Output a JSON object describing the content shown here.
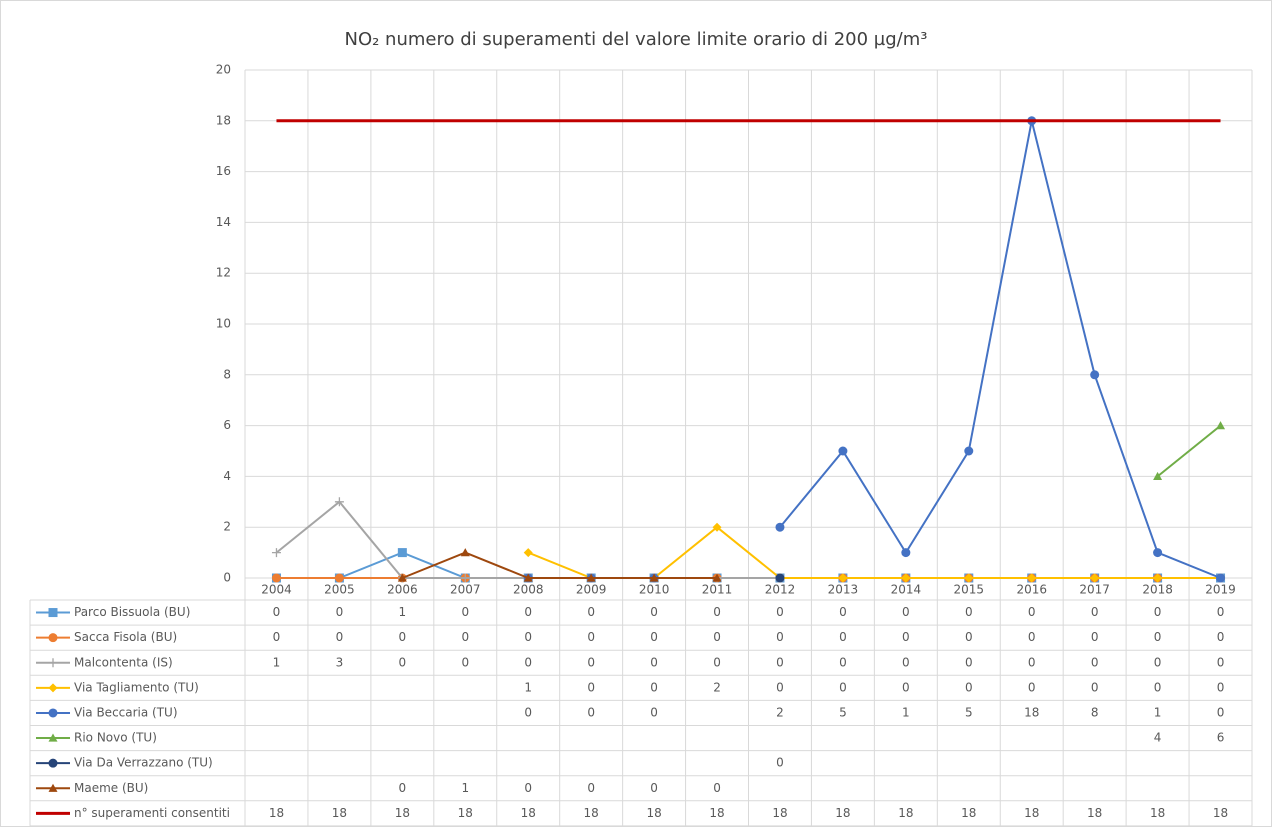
{
  "chart_data": {
    "type": "line",
    "title": "NO₂ numero di superamenti del valore limite orario di 200 µg/m³",
    "categories": [
      "2004",
      "2005",
      "2006",
      "2007",
      "2008",
      "2009",
      "2010",
      "2011",
      "2012",
      "2013",
      "2014",
      "2015",
      "2016",
      "2017",
      "2018",
      "2019"
    ],
    "ylim": [
      0,
      20
    ],
    "yticks": [
      0,
      2,
      4,
      6,
      8,
      10,
      12,
      14,
      16,
      18,
      20
    ],
    "grid": true,
    "series": [
      {
        "name": "Parco Bissuola (BU)",
        "color": "#5b9bd5",
        "marker": "square",
        "values": [
          0,
          0,
          1,
          0,
          0,
          0,
          0,
          0,
          0,
          0,
          0,
          0,
          0,
          0,
          0,
          0
        ]
      },
      {
        "name": "Sacca Fisola (BU)",
        "color": "#ed7d31",
        "marker": "circle",
        "values": [
          0,
          0,
          0,
          0,
          0,
          0,
          0,
          0,
          0,
          0,
          0,
          0,
          0,
          0,
          0,
          0
        ]
      },
      {
        "name": "Malcontenta (IS)",
        "color": "#a5a5a5",
        "marker": "plus",
        "values": [
          1,
          3,
          0,
          0,
          0,
          0,
          0,
          0,
          0,
          0,
          0,
          0,
          0,
          0,
          0,
          0
        ]
      },
      {
        "name": "Via Tagliamento (TU)",
        "color": "#ffc000",
        "marker": "diamond",
        "values": [
          null,
          null,
          null,
          null,
          1,
          0,
          0,
          2,
          0,
          0,
          0,
          0,
          0,
          0,
          0,
          0
        ]
      },
      {
        "name": "Via Beccaria (TU)",
        "color": "#4472c4",
        "marker": "circle",
        "values": [
          null,
          null,
          null,
          null,
          0,
          0,
          0,
          null,
          2,
          5,
          1,
          5,
          18,
          8,
          1,
          0
        ]
      },
      {
        "name": "Rio Novo (TU)",
        "color": "#70ad47",
        "marker": "triangle",
        "values": [
          null,
          null,
          null,
          null,
          null,
          null,
          null,
          null,
          null,
          null,
          null,
          null,
          null,
          null,
          4,
          6
        ]
      },
      {
        "name": "Via Da Verrazzano (TU)",
        "color": "#264478",
        "marker": "circle",
        "values": [
          null,
          null,
          null,
          null,
          null,
          null,
          null,
          null,
          0,
          null,
          null,
          null,
          null,
          null,
          null,
          null
        ]
      },
      {
        "name": "Maeme (BU)",
        "color": "#9e480e",
        "marker": "triangle",
        "values": [
          null,
          null,
          0,
          1,
          0,
          0,
          0,
          0,
          null,
          null,
          null,
          null,
          null,
          null,
          null,
          null
        ]
      },
      {
        "name": "n° superamenti consentiti",
        "color": "#c00000",
        "marker": "none",
        "values": [
          18,
          18,
          18,
          18,
          18,
          18,
          18,
          18,
          18,
          18,
          18,
          18,
          18,
          18,
          18,
          18
        ]
      }
    ]
  }
}
